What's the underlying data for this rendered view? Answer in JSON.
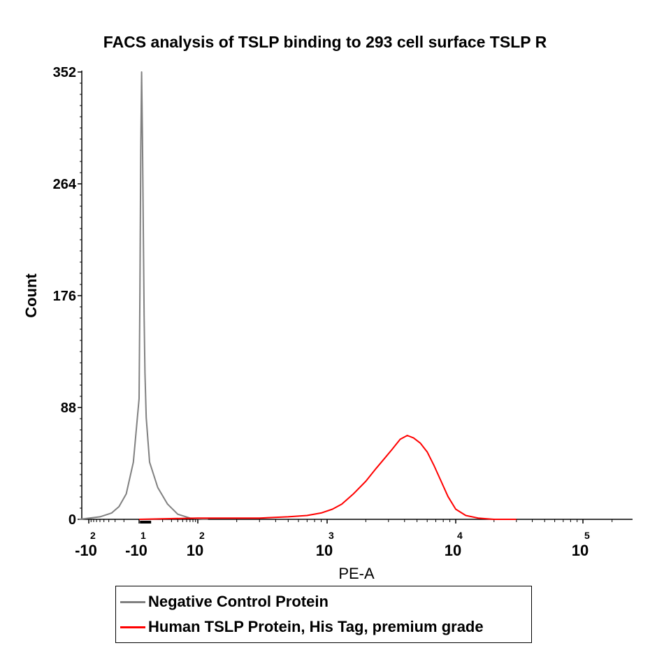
{
  "chart_data": {
    "type": "line",
    "title": "FACS analysis of  TSLP binding to 293 cell surface TSLP R",
    "xlabel": "PE-A",
    "ylabel": "Count",
    "x_scale": "biexponential",
    "ylim": [
      0,
      352
    ],
    "y_ticks": [
      "0",
      "88",
      "176",
      "264",
      "352"
    ],
    "x_ticks": [
      {
        "value": -100,
        "base": "-10",
        "exp": "2"
      },
      {
        "value": -10,
        "base": "-10",
        "exp": "1"
      },
      {
        "value": 100,
        "base": "10",
        "exp": "2"
      },
      {
        "value": 1000,
        "base": "10",
        "exp": "3"
      },
      {
        "value": 10000,
        "base": "10",
        "exp": "4"
      },
      {
        "value": 100000,
        "base": "10",
        "exp": "5"
      }
    ],
    "legend_position": "bottom",
    "series": [
      {
        "name": "Negative Control Protein",
        "color": "#808080",
        "x": [
          -160,
          -60,
          -35,
          -25,
          -18,
          -13,
          -10,
          -8,
          -6,
          -4,
          -2,
          0,
          2,
          4,
          7,
          11,
          16,
          25,
          40,
          70,
          120
        ],
        "y": [
          0,
          2,
          5,
          10,
          20,
          45,
          95,
          180,
          290,
          352,
          300,
          230,
          160,
          115,
          80,
          45,
          25,
          12,
          4,
          1,
          0
        ]
      },
      {
        "name": "Human TSLP Protein, His Tag, premium grade",
        "color": "#ff0000",
        "x": [
          -10,
          100,
          300,
          500,
          700,
          900,
          1100,
          1300,
          1600,
          2000,
          2400,
          2800,
          3200,
          3700,
          4200,
          4700,
          5300,
          6000,
          6800,
          7700,
          8700,
          10000,
          12000,
          15000,
          20000,
          30000
        ],
        "y": [
          0,
          1,
          1,
          2,
          3,
          5,
          8,
          12,
          20,
          30,
          40,
          48,
          55,
          63,
          66,
          64,
          60,
          53,
          42,
          30,
          18,
          8,
          3,
          1,
          0,
          0
        ]
      }
    ]
  }
}
